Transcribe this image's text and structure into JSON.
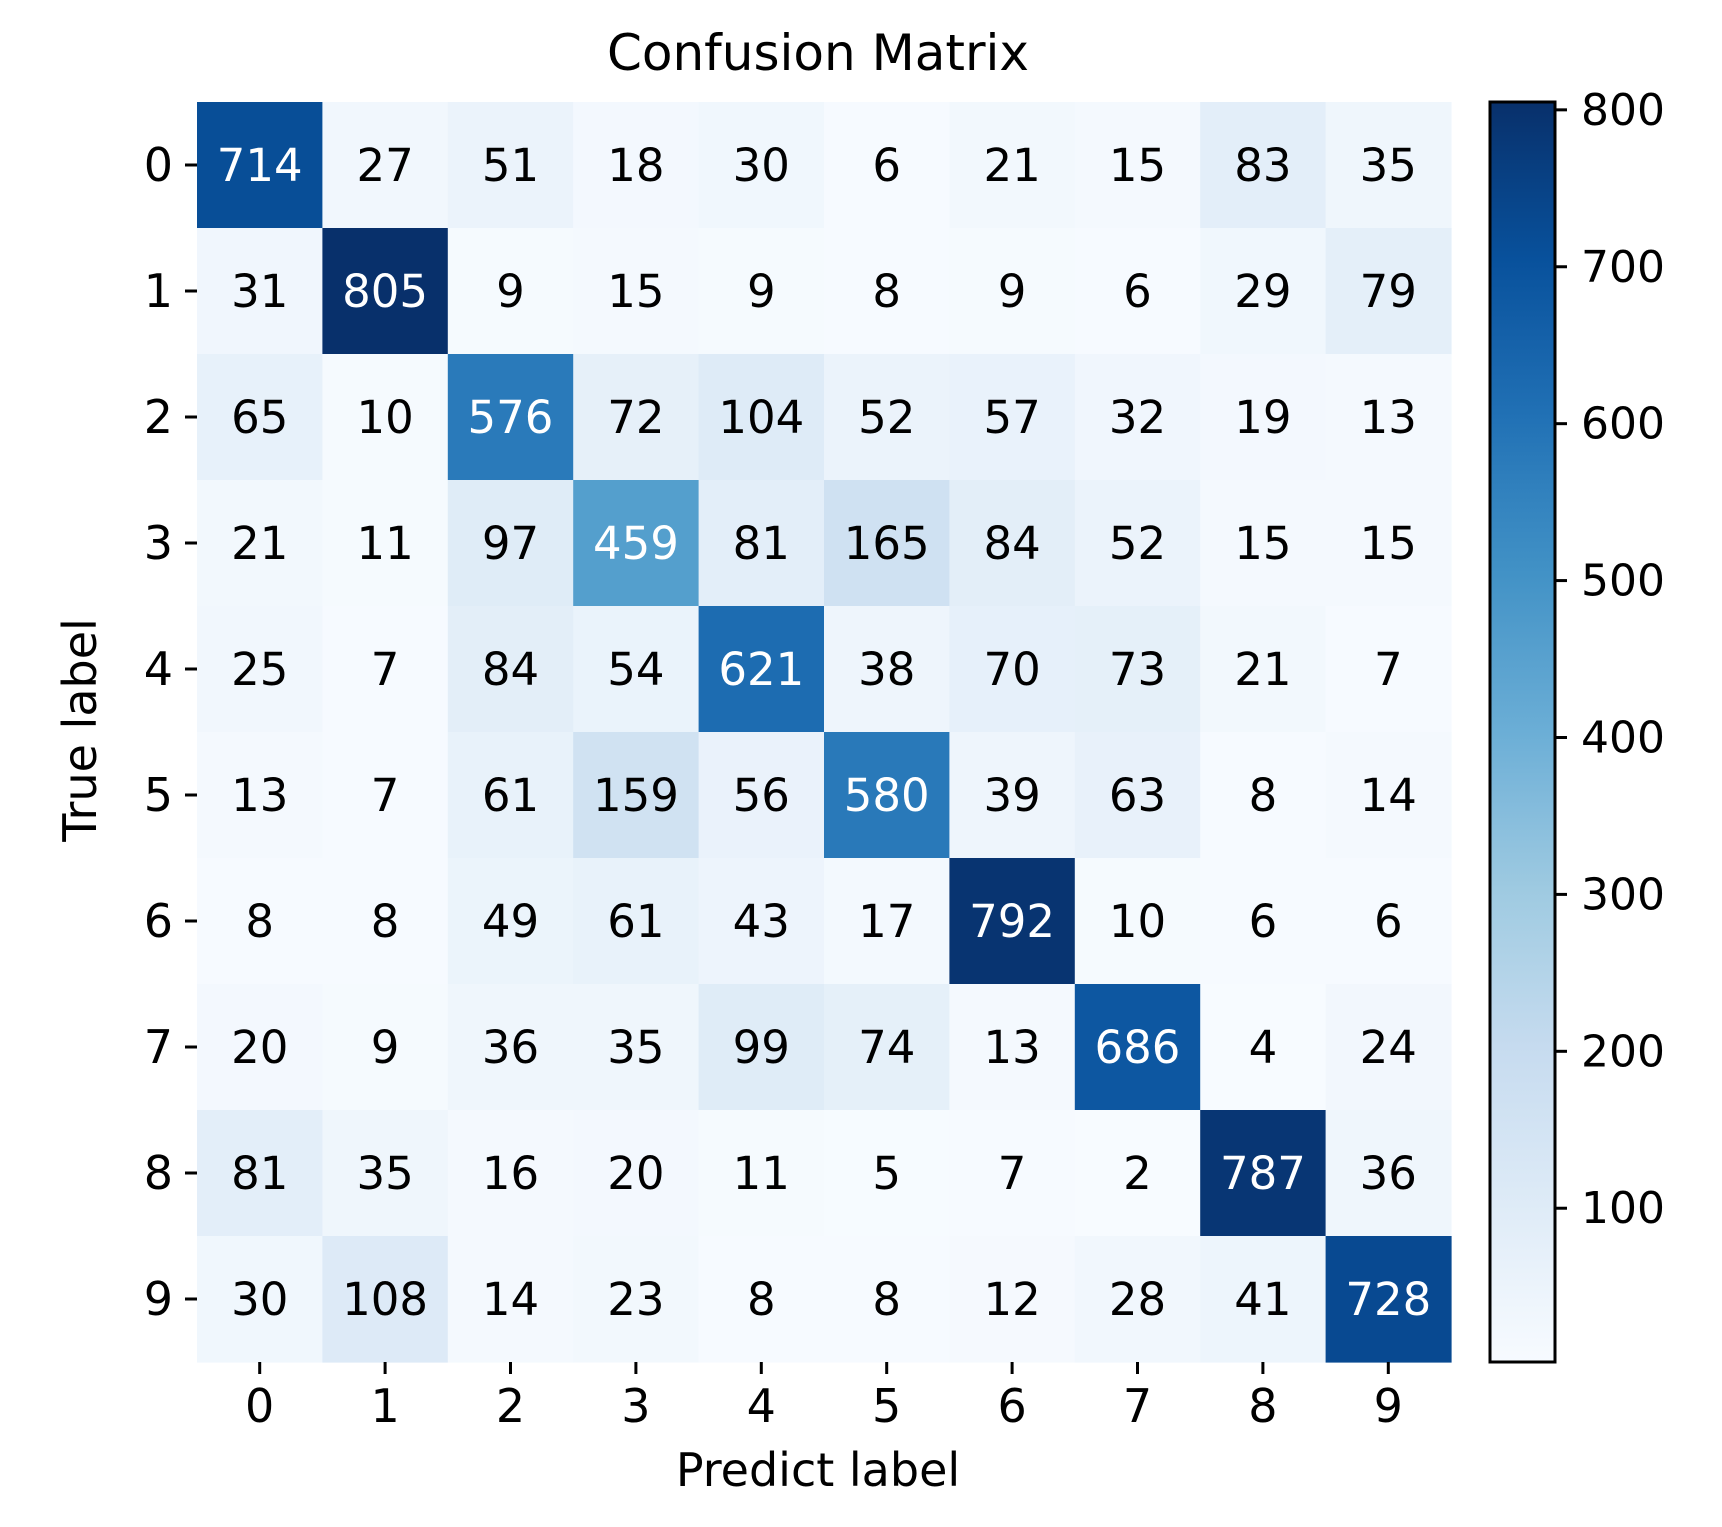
{
  "chart_data": {
    "type": "heatmap",
    "title": "Confusion Matrix",
    "xlabel": "Predict label",
    "ylabel": "True label",
    "x_categories": [
      "0",
      "1",
      "2",
      "3",
      "4",
      "5",
      "6",
      "7",
      "8",
      "9"
    ],
    "y_categories": [
      "0",
      "1",
      "2",
      "3",
      "4",
      "5",
      "6",
      "7",
      "8",
      "9"
    ],
    "values": [
      [
        714,
        27,
        51,
        18,
        30,
        6,
        21,
        15,
        83,
        35
      ],
      [
        31,
        805,
        9,
        15,
        9,
        8,
        9,
        6,
        29,
        79
      ],
      [
        65,
        10,
        576,
        72,
        104,
        52,
        57,
        32,
        19,
        13
      ],
      [
        21,
        11,
        97,
        459,
        81,
        165,
        84,
        52,
        15,
        15
      ],
      [
        25,
        7,
        84,
        54,
        621,
        38,
        70,
        73,
        21,
        7
      ],
      [
        13,
        7,
        61,
        159,
        56,
        580,
        39,
        63,
        8,
        14
      ],
      [
        8,
        8,
        49,
        61,
        43,
        17,
        792,
        10,
        6,
        6
      ],
      [
        20,
        9,
        36,
        35,
        99,
        74,
        13,
        686,
        4,
        24
      ],
      [
        81,
        35,
        16,
        20,
        11,
        5,
        7,
        2,
        787,
        36
      ],
      [
        30,
        108,
        14,
        23,
        8,
        8,
        12,
        28,
        41,
        728
      ]
    ],
    "colormap": "Blues",
    "colorbar": {
      "range": [
        2,
        805
      ],
      "ticks": [
        100,
        200,
        300,
        400,
        500,
        600,
        700,
        800
      ],
      "tick_labels": [
        "100",
        "200",
        "300",
        "400",
        "500",
        "600",
        "700",
        "800"
      ]
    },
    "grid": false
  }
}
